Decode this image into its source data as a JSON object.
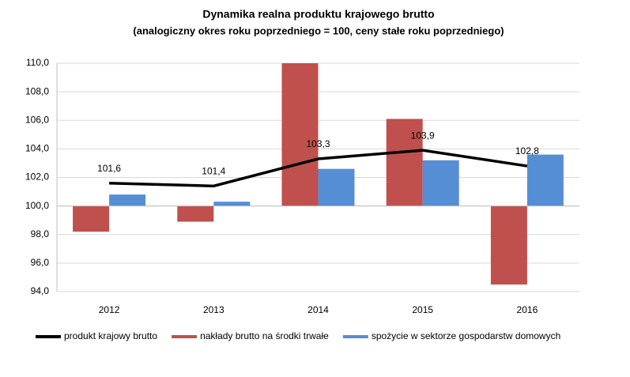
{
  "chart_data": {
    "type": "bar",
    "title": "Dynamika realna produktu krajowego brutto",
    "subtitle": "(analogiczny okres roku poprzedniego = 100, ceny stałe roku poprzedniego)",
    "categories": [
      "2012",
      "2013",
      "2014",
      "2015",
      "2016"
    ],
    "baseline": 100,
    "ylim": [
      94,
      110
    ],
    "yticks": [
      {
        "value": 94,
        "label": "94,0"
      },
      {
        "value": 96,
        "label": "96,0"
      },
      {
        "value": 98,
        "label": "98,0"
      },
      {
        "value": 100,
        "label": "100,0"
      },
      {
        "value": 102,
        "label": "102,0"
      },
      {
        "value": 104,
        "label": "104,0"
      },
      {
        "value": 106,
        "label": "106,0"
      },
      {
        "value": 108,
        "label": "108,0"
      },
      {
        "value": 110,
        "label": "110,0"
      }
    ],
    "grid": true,
    "legend": "bottom",
    "series": [
      {
        "name": "produkt krajowy brutto",
        "type": "line",
        "color": "#000000",
        "values": [
          101.6,
          101.4,
          103.3,
          103.9,
          102.8
        ],
        "value_labels": [
          "101,6",
          "101,4",
          "103,3",
          "103,9",
          "102,8"
        ]
      },
      {
        "name": "nakłady brutto na środki trwałe",
        "type": "bar",
        "color": "#c0504d",
        "values": [
          98.2,
          98.9,
          110.0,
          106.1,
          94.5
        ]
      },
      {
        "name": "spożycie w sektorze  gospodarstw domowych",
        "type": "bar",
        "color": "#558ed5",
        "values": [
          100.8,
          100.3,
          102.6,
          103.2,
          103.6
        ]
      }
    ]
  }
}
